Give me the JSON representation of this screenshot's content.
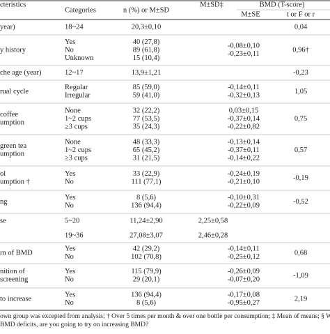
{
  "table": {
    "header": {
      "characteristics": "cteristics",
      "categories": "Categories",
      "n": "n (%) or M±SD",
      "msd": "M±SD‡",
      "bmd": "BMD (T-score)",
      "mse": "M±SE",
      "stat": "t or F or r"
    },
    "rows": [
      {
        "characteristic": [
          "year)"
        ],
        "categories": [
          "18~24"
        ],
        "n": [
          "20,3±0,10"
        ],
        "msd": [],
        "mse": [],
        "stat": "0,04"
      },
      {
        "characteristic": [
          "y history"
        ],
        "categories": [
          "Yes",
          "No",
          "Unknown"
        ],
        "n": [
          "40 (27,8)",
          "89 (61,8)",
          "15 (10,4)"
        ],
        "msd": [],
        "mse": [
          "-0,08±0,10",
          "-0,23±0,11"
        ],
        "stat": "0,96†"
      },
      {
        "characteristic": [
          "che age (year)"
        ],
        "categories": [
          "12~17"
        ],
        "n": [
          "13,9±1,21"
        ],
        "msd": [],
        "mse": [],
        "stat": "-0,23"
      },
      {
        "characteristic": [
          "rual cycle"
        ],
        "categories": [
          "Regular",
          "Irregular"
        ],
        "n": [
          "85 (59,0)",
          "59 (41,0)"
        ],
        "msd": [],
        "mse": [
          "-0,14±0,11",
          "-0,32±0,13"
        ],
        "stat": "1,05"
      },
      {
        "characteristic": [
          "coffee",
          "umption"
        ],
        "categories": [
          "None",
          "1~2 cups",
          "≥3 cups"
        ],
        "n": [
          "32 (22,2)",
          "77 (53,5)",
          "35 (24,3)"
        ],
        "msd": [],
        "mse": [
          "0,03±0,15",
          "-0,37±0,14",
          "-0,22±0,82"
        ],
        "stat": "0,75"
      },
      {
        "characteristic": [
          "green tea",
          "umption"
        ],
        "categories": [
          "None",
          "1~2 cups",
          "≥3 cups"
        ],
        "n": [
          "48 (33,3)",
          "65 (45,2)",
          "31 (21,5)"
        ],
        "msd": [],
        "mse": [
          "-0,13±0,14",
          "-0,37±0,11",
          "-0,14±0,22"
        ],
        "stat": "0,57"
      },
      {
        "characteristic": [
          "ol",
          "umption †"
        ],
        "categories": [
          "Yes",
          "No"
        ],
        "n": [
          "33 (22,9)",
          "111 (77,1)"
        ],
        "msd": [],
        "mse": [
          "-0,24±0,19",
          "-0,21±0,10"
        ],
        "stat": "-0,19"
      },
      {
        "characteristic": [
          "ng"
        ],
        "categories": [
          "Yes",
          "No"
        ],
        "n": [
          "8 (5,6)",
          "136 (94,4)"
        ],
        "msd": [],
        "mse": [
          "-0,10±0,31",
          "-0,22±0,09"
        ],
        "stat": "-0,52"
      },
      {
        "characteristic": [
          "se"
        ],
        "categories": [
          "5~20"
        ],
        "n": [
          "11,24±2,90"
        ],
        "msd": [
          "2,25±0,58"
        ],
        "mse": [],
        "stat": ""
      },
      {
        "characteristic": [],
        "categories": [
          "19~36"
        ],
        "n": [
          "27,08±3,07"
        ],
        "msd": [
          "2,46±0,28"
        ],
        "mse": [],
        "stat": ""
      },
      {
        "characteristic": [
          "rn of BMD"
        ],
        "categories": [
          "Yes",
          "No"
        ],
        "n": [
          "42 (29,2)",
          "102 (70,8)"
        ],
        "msd": [],
        "mse": [
          "-0,14±0,11",
          "-0,25±0,12"
        ],
        "stat": "0,68"
      },
      {
        "characteristic": [
          "nition of",
          "screening"
        ],
        "categories": [
          "Yes",
          "No"
        ],
        "n": [
          "115 (79,9)",
          "29 (20,1)"
        ],
        "msd": [],
        "mse": [
          "-0,26±0,09",
          "-0,07±0,20"
        ],
        "stat": "-1,09"
      },
      {
        "characteristic": [
          "to increase"
        ],
        "categories": [
          "Yes",
          "No"
        ],
        "n": [
          "136 (94,4)",
          "8 (5,6)"
        ],
        "msd": [],
        "mse": [
          "-0,17±0,08",
          "-0,95±0,27"
        ],
        "stat": "2,19"
      }
    ]
  },
  "footnote": [
    "own group was excepted from analysis; † Over 5 times per month & over one bottle per consumption; ‡ Mean of means; § W",
    "BMD deficits, are you going to try on increasing BMD?"
  ]
}
